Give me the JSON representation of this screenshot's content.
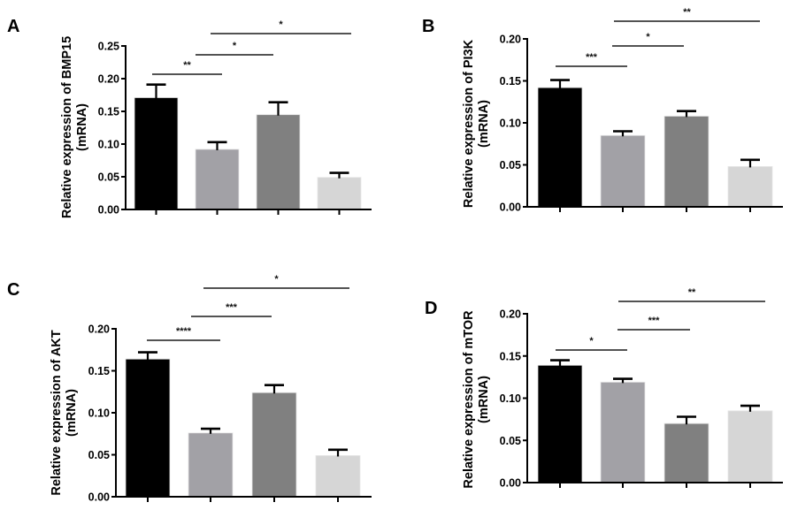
{
  "figure": {
    "bar_colors": [
      "#000000",
      "#a2a1a6",
      "#808080",
      "#d6d6d6"
    ]
  },
  "chart_data": [
    {
      "type": "bar",
      "panel": "A",
      "title": "",
      "xlabel": "",
      "ylabel": "Relative expression of BMP15",
      "ylabel_unit": "(mRNA)",
      "categories": [
        "",
        "",
        "",
        ""
      ],
      "values": [
        0.171,
        0.092,
        0.145,
        0.049
      ],
      "error_upper": [
        0.191,
        0.103,
        0.164,
        0.056
      ],
      "ylim": [
        0,
        0.25
      ],
      "yticks": [
        "0.00",
        "0.05",
        "0.10",
        "0.15",
        "0.20",
        "0.25"
      ],
      "grid": false,
      "significance": [
        {
          "from": 0,
          "to": 1,
          "label": "**"
        },
        {
          "from": 1,
          "to": 2,
          "label": "*"
        },
        {
          "from": 1,
          "to": 3,
          "label": "*"
        }
      ]
    },
    {
      "type": "bar",
      "panel": "B",
      "title": "",
      "xlabel": "",
      "ylabel": "Relative expression of PI3K",
      "ylabel_unit": "(mRNA)",
      "categories": [
        "",
        "",
        "",
        ""
      ],
      "values": [
        0.142,
        0.085,
        0.108,
        0.048
      ],
      "error_upper": [
        0.151,
        0.09,
        0.114,
        0.056
      ],
      "ylim": [
        0,
        0.2
      ],
      "yticks": [
        "0.00",
        "0.05",
        "0.10",
        "0.15",
        "0.20"
      ],
      "grid": false,
      "significance": [
        {
          "from": 0,
          "to": 1,
          "label": "***"
        },
        {
          "from": 1,
          "to": 2,
          "label": "*"
        },
        {
          "from": 1,
          "to": 3,
          "label": "**"
        }
      ]
    },
    {
      "type": "bar",
      "panel": "C",
      "title": "",
      "xlabel": "",
      "ylabel": "Relative expression of AKT",
      "ylabel_unit": "(mRNA)",
      "categories": [
        "",
        "",
        "",
        ""
      ],
      "values": [
        0.164,
        0.076,
        0.124,
        0.049
      ],
      "error_upper": [
        0.172,
        0.081,
        0.133,
        0.056
      ],
      "ylim": [
        0,
        0.2
      ],
      "yticks": [
        "0.00",
        "0.05",
        "0.10",
        "0.15",
        "0.20"
      ],
      "grid": false,
      "significance": [
        {
          "from": 0,
          "to": 1,
          "label": "****"
        },
        {
          "from": 1,
          "to": 2,
          "label": "***"
        },
        {
          "from": 1,
          "to": 3,
          "label": "*"
        }
      ]
    },
    {
      "type": "bar",
      "panel": "D",
      "title": "",
      "xlabel": "",
      "ylabel": "Relative expression of mTOR",
      "ylabel_unit": "(mRNA)",
      "categories": [
        "",
        "",
        "",
        ""
      ],
      "values": [
        0.139,
        0.119,
        0.07,
        0.085
      ],
      "error_upper": [
        0.145,
        0.123,
        0.078,
        0.091
      ],
      "ylim": [
        0,
        0.2
      ],
      "yticks": [
        "0.00",
        "0.05",
        "0.10",
        "0.15",
        "0.20"
      ],
      "grid": false,
      "significance": [
        {
          "from": 0,
          "to": 1,
          "label": "*"
        },
        {
          "from": 1,
          "to": 2,
          "label": "***"
        },
        {
          "from": 1,
          "to": 3,
          "label": "**"
        }
      ]
    }
  ]
}
